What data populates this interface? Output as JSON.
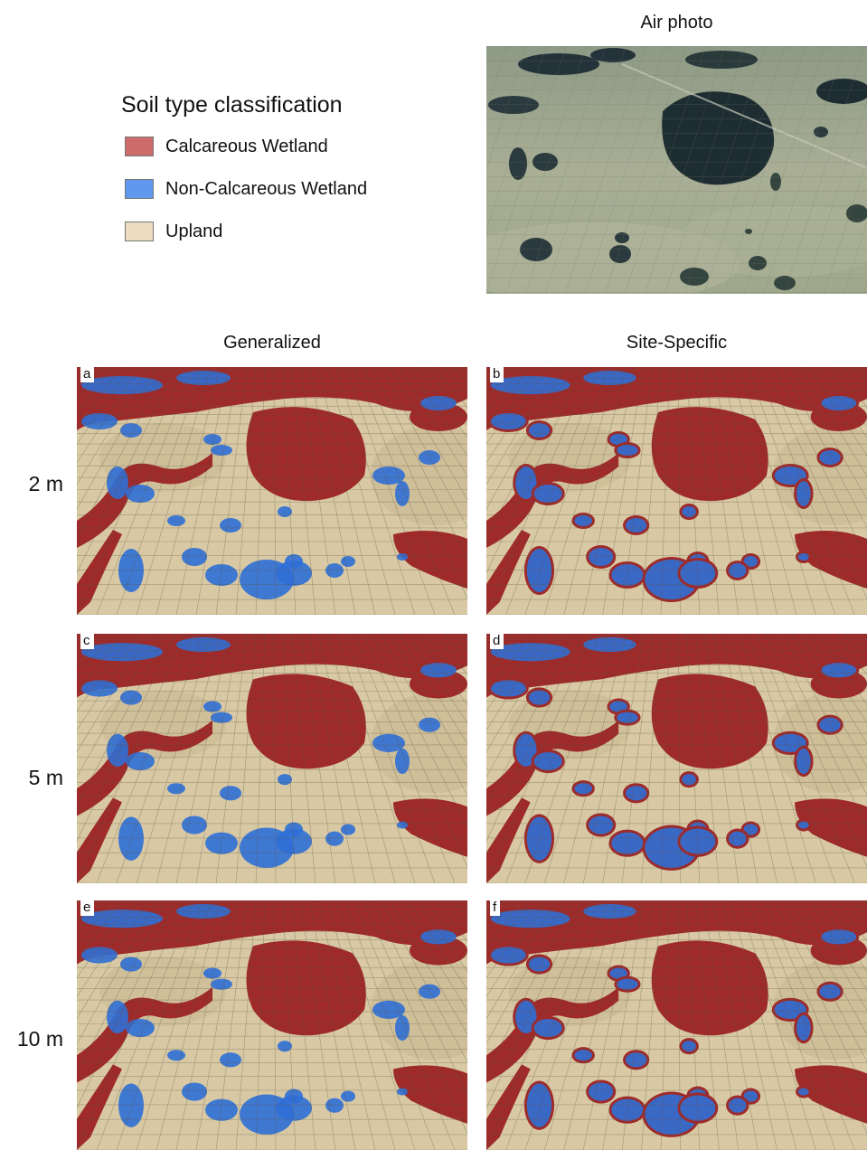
{
  "legend": {
    "title": "Soil type classification",
    "items": [
      {
        "label": "Calcareous Wetland",
        "color": "#cd6b6b"
      },
      {
        "label": "Non-Calcareous Wetland",
        "color": "#5f98ec"
      },
      {
        "label": "Upland",
        "color": "#ecdcc0"
      }
    ]
  },
  "air_photo": {
    "title": "Air photo"
  },
  "columns": {
    "generalized": "Generalized",
    "site_specific": "Site-Specific"
  },
  "rows": [
    {
      "label": "2 m",
      "left_letter": "a",
      "right_letter": "b"
    },
    {
      "label": "5 m",
      "left_letter": "c",
      "right_letter": "d"
    },
    {
      "label": "10 m",
      "left_letter": "e",
      "right_letter": "f"
    }
  ],
  "colors": {
    "calcareous": "#9e2a2a",
    "non_calcareous": "#2f6fd6",
    "upland": "#d8c9a4",
    "photo_land": "#9aa48a",
    "photo_water": "#1e2d32"
  }
}
